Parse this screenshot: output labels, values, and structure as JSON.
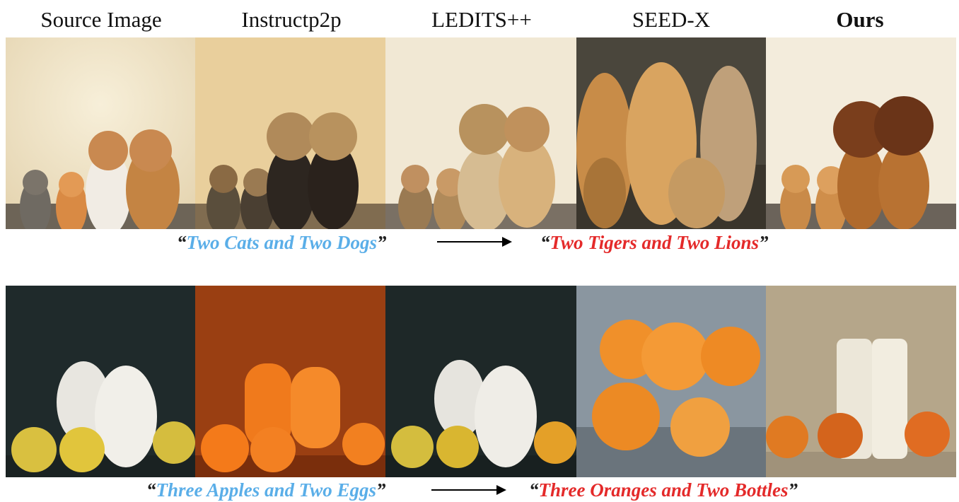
{
  "columns": [
    "Source Image",
    "Instructp2p",
    "LEDITS++",
    "SEED-X",
    "Ours"
  ],
  "rows": [
    {
      "source_prompt": "Two Cats and Two Dogs",
      "target_prompt": "Two Tigers and Two Lions",
      "open_quote": "“",
      "close_quote": "”"
    },
    {
      "source_prompt": "Three Apples and Two Eggs",
      "target_prompt": "Three Oranges and Two Bottles",
      "open_quote": "“",
      "close_quote": "”"
    }
  ],
  "colors": {
    "source_prompt": "#5aaee8",
    "target_prompt": "#e42a2a"
  }
}
